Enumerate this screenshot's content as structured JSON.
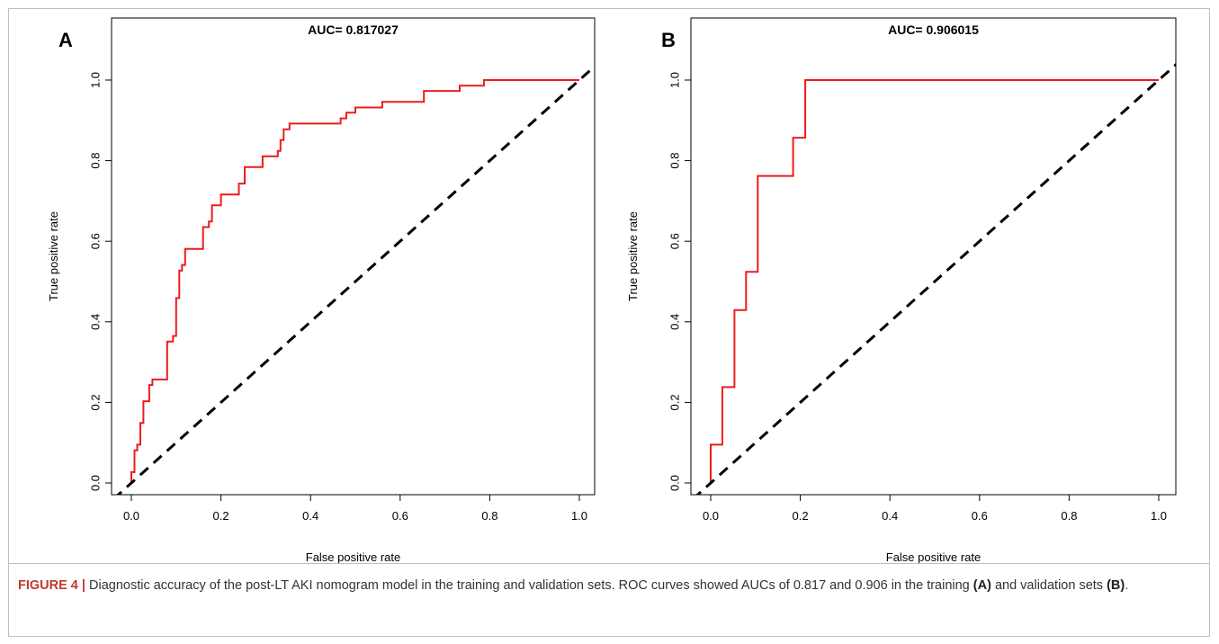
{
  "chart_data": [
    {
      "panel_label": "A",
      "type": "line",
      "title": "AUC= 0.817027",
      "xlabel": "False positive rate",
      "ylabel": "True positive rate",
      "xlim": [
        0.0,
        1.0
      ],
      "ylim": [
        0.0,
        1.0
      ],
      "xticks": [
        "0.0",
        "0.2",
        "0.4",
        "0.6",
        "0.8",
        "1.0"
      ],
      "yticks": [
        "0.0",
        "0.2",
        "0.4",
        "0.6",
        "0.8",
        "1.0"
      ],
      "grid": false,
      "series": [
        {
          "color": "#ee1c1c",
          "style": "solid",
          "x": [
            0.0,
            0.0,
            0.007,
            0.007,
            0.013,
            0.013,
            0.02,
            0.02,
            0.027,
            0.027,
            0.04,
            0.04,
            0.047,
            0.047,
            0.053,
            0.053,
            0.08,
            0.08,
            0.093,
            0.093,
            0.1,
            0.1,
            0.107,
            0.107,
            0.113,
            0.113,
            0.12,
            0.12,
            0.16,
            0.16,
            0.173,
            0.173,
            0.18,
            0.18,
            0.2,
            0.2,
            0.24,
            0.24,
            0.253,
            0.253,
            0.267,
            0.267,
            0.293,
            0.293,
            0.327,
            0.327,
            0.333,
            0.333,
            0.34,
            0.34,
            0.353,
            0.353,
            0.373,
            0.373,
            0.467,
            0.467,
            0.48,
            0.48,
            0.493,
            0.493,
            0.5,
            0.5,
            0.56,
            0.56,
            0.6,
            0.6,
            0.653,
            0.653,
            0.667,
            0.667,
            0.733,
            0.733,
            0.76,
            0.76,
            0.787,
            0.787,
            0.8,
            1.0
          ],
          "y": [
            0.0,
            0.027,
            0.027,
            0.081,
            0.081,
            0.095,
            0.095,
            0.149,
            0.149,
            0.203,
            0.203,
            0.243,
            0.243,
            0.257,
            0.257,
            0.257,
            0.257,
            0.351,
            0.351,
            0.365,
            0.365,
            0.459,
            0.459,
            0.527,
            0.527,
            0.541,
            0.541,
            0.581,
            0.581,
            0.635,
            0.635,
            0.649,
            0.649,
            0.689,
            0.689,
            0.716,
            0.716,
            0.743,
            0.743,
            0.784,
            0.784,
            0.784,
            0.784,
            0.811,
            0.811,
            0.824,
            0.824,
            0.851,
            0.851,
            0.878,
            0.878,
            0.892,
            0.892,
            0.892,
            0.892,
            0.905,
            0.905,
            0.919,
            0.919,
            0.919,
            0.919,
            0.932,
            0.932,
            0.946,
            0.946,
            0.946,
            0.946,
            0.973,
            0.973,
            0.973,
            0.973,
            0.986,
            0.986,
            0.986,
            0.986,
            1.0,
            1.0,
            1.0
          ]
        },
        {
          "color": "#000000",
          "style": "dashed",
          "x": [
            -0.04,
            1.04
          ],
          "y": [
            -0.04,
            1.04
          ]
        }
      ]
    },
    {
      "panel_label": "B",
      "type": "line",
      "title": "AUC= 0.906015",
      "xlabel": "False positive rate",
      "ylabel": "True positive rate",
      "xlim": [
        0.0,
        1.0
      ],
      "ylim": [
        0.0,
        1.0
      ],
      "xticks": [
        "0.0",
        "0.2",
        "0.4",
        "0.6",
        "0.8",
        "1.0"
      ],
      "yticks": [
        "0.0",
        "0.2",
        "0.4",
        "0.6",
        "0.8",
        "1.0"
      ],
      "grid": false,
      "series": [
        {
          "color": "#ee1c1c",
          "style": "solid",
          "x": [
            0.0,
            0.0,
            0.026,
            0.026,
            0.053,
            0.053,
            0.079,
            0.079,
            0.105,
            0.105,
            0.184,
            0.184,
            0.211,
            0.211,
            1.0
          ],
          "y": [
            0.0,
            0.095,
            0.095,
            0.238,
            0.238,
            0.429,
            0.429,
            0.524,
            0.524,
            0.762,
            0.762,
            0.857,
            0.857,
            1.0,
            1.0
          ]
        },
        {
          "color": "#000000",
          "style": "dashed",
          "x": [
            -0.04,
            1.04
          ],
          "y": [
            -0.04,
            1.04
          ]
        }
      ]
    }
  ],
  "caption": {
    "lead": "FIGURE 4 |",
    "text_1": " Diagnostic accuracy of the post-LT AKI nomogram model in the training and validation sets. ROC curves showed AUCs of 0.817 and 0.906 in the training ",
    "ref_a": "(A)",
    "text_2": " and validation sets ",
    "ref_b": "(B)",
    "text_3": "."
  }
}
